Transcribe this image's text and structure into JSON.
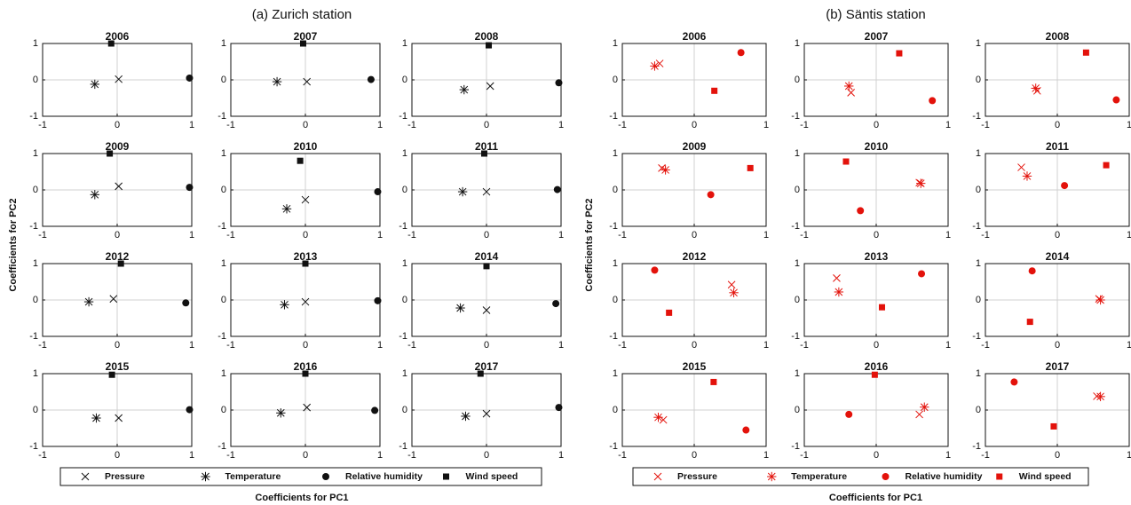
{
  "chart_data": [
    {
      "type": "scatter",
      "title": "(a) Zurich station",
      "xlabel": "Coefficients for PC1",
      "ylabel": "Coefficients for PC2",
      "subplot_titles": [
        "2006",
        "2007",
        "2008",
        "2009",
        "2010",
        "2011",
        "2012",
        "2013",
        "2014",
        "2015",
        "2016",
        "2017"
      ],
      "xlim": [
        -1,
        1
      ],
      "ylim": [
        -1,
        1
      ],
      "xticks": [
        -1,
        0,
        1
      ],
      "yticks": [
        -1,
        0,
        1
      ],
      "grid": true,
      "legend": "bottom",
      "series": [
        {
          "name": "Pressure",
          "color": "#111111",
          "marker": "x",
          "x": [
            0.02,
            0.02,
            0.05,
            0.02,
            0,
            0,
            -0.05,
            0,
            0,
            0.02,
            0.02,
            0
          ],
          "values": [
            0.02,
            -0.05,
            -0.17,
            0.1,
            -0.27,
            -0.05,
            0.03,
            -0.05,
            -0.28,
            -0.22,
            0.07,
            -0.1
          ]
        },
        {
          "name": "Temperature",
          "color": "#111111",
          "marker": "asterisk",
          "x": [
            -0.3,
            -0.38,
            -0.3,
            -0.3,
            -0.25,
            -0.32,
            -0.38,
            -0.28,
            -0.35,
            -0.28,
            -0.33,
            -0.28
          ],
          "values": [
            -0.12,
            -0.05,
            -0.27,
            -0.13,
            -0.52,
            -0.05,
            -0.05,
            -0.13,
            -0.22,
            -0.22,
            -0.08,
            -0.17
          ]
        },
        {
          "name": "Relative humidity",
          "color": "#111111",
          "marker": "circle",
          "x": [
            0.97,
            0.88,
            0.97,
            0.97,
            0.97,
            0.95,
            0.92,
            0.97,
            0.93,
            0.97,
            0.93,
            0.97
          ],
          "values": [
            0.05,
            0.01,
            -0.08,
            0.07,
            -0.05,
            0.01,
            -0.08,
            -0.02,
            -0.1,
            0.01,
            -0.01,
            0.07
          ]
        },
        {
          "name": "Wind speed",
          "color": "#111111",
          "marker": "square",
          "x": [
            -0.08,
            -0.03,
            0.03,
            -0.1,
            -0.07,
            -0.03,
            0.05,
            0,
            0,
            -0.07,
            0,
            -0.08
          ],
          "values": [
            1,
            1,
            0.95,
            1,
            0.8,
            1,
            1,
            1,
            0.93,
            0.97,
            1,
            1
          ]
        }
      ]
    },
    {
      "type": "scatter",
      "title": "(b) Säntis station",
      "xlabel": "Coefficients for PC1",
      "ylabel": "Coefficients for PC2",
      "subplot_titles": [
        "2006",
        "2007",
        "2008",
        "2009",
        "2010",
        "2011",
        "2012",
        "2013",
        "2014",
        "2015",
        "2016",
        "2017"
      ],
      "xlim": [
        -1,
        1
      ],
      "ylim": [
        -1,
        1
      ],
      "xticks": [
        -1,
        0,
        1
      ],
      "yticks": [
        -1,
        0,
        1
      ],
      "grid": true,
      "legend": "bottom",
      "series": [
        {
          "name": "Pressure",
          "color": "#e3120b",
          "marker": "x",
          "x": [
            -0.48,
            -0.35,
            -0.28,
            -0.45,
            0.6,
            -0.5,
            0.52,
            -0.55,
            0.58,
            -0.43,
            0.6,
            0.55
          ],
          "values": [
            0.45,
            -0.35,
            -0.3,
            0.6,
            0.2,
            0.62,
            0.42,
            0.6,
            0.03,
            -0.27,
            -0.12,
            0.38
          ]
        },
        {
          "name": "Temperature",
          "color": "#e3120b",
          "marker": "asterisk",
          "x": [
            -0.55,
            -0.38,
            -0.3,
            -0.4,
            0.62,
            -0.42,
            0.55,
            -0.52,
            0.6,
            -0.5,
            0.67,
            0.6
          ],
          "values": [
            0.38,
            -0.17,
            -0.23,
            0.55,
            0.18,
            0.38,
            0.2,
            0.22,
            0,
            -0.2,
            0.08,
            0.37
          ]
        },
        {
          "name": "Relative humidity",
          "color": "#e3120b",
          "marker": "circle",
          "x": [
            0.65,
            0.78,
            0.82,
            0.23,
            -0.22,
            0.1,
            -0.55,
            0.63,
            -0.35,
            0.72,
            -0.38,
            -0.6
          ],
          "values": [
            0.75,
            -0.57,
            -0.55,
            -0.13,
            -0.57,
            0.12,
            0.82,
            0.72,
            0.8,
            -0.55,
            -0.12,
            0.77
          ]
        },
        {
          "name": "Wind speed",
          "color": "#e3120b",
          "marker": "square",
          "x": [
            0.28,
            0.32,
            0.4,
            0.78,
            -0.42,
            0.68,
            -0.35,
            0.08,
            -0.38,
            0.27,
            -0.02,
            -0.05
          ],
          "values": [
            -0.3,
            0.73,
            0.75,
            0.6,
            0.78,
            0.68,
            -0.35,
            -0.2,
            -0.6,
            0.77,
            0.97,
            -0.45
          ]
        }
      ]
    }
  ]
}
